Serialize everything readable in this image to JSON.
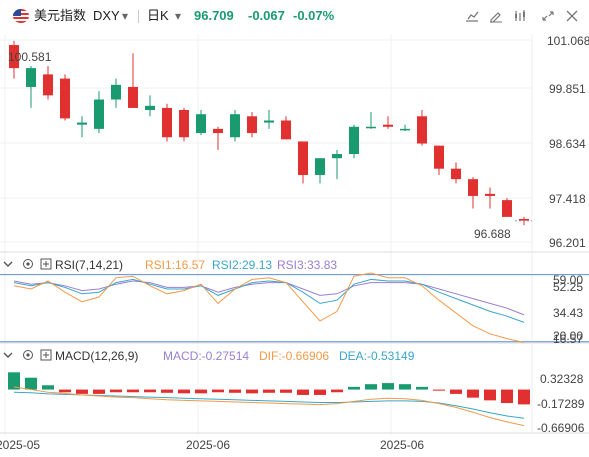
{
  "header": {
    "name": "美元指数",
    "symbol": "DXY",
    "period": "日K",
    "price": "96.709",
    "change": "-0.067",
    "change_pct": "-0.07%",
    "colors": {
      "up": "#e0302f",
      "down": "#1a9b6f",
      "accent": "#1a6fd4"
    }
  },
  "price_panel": {
    "y_ticks": [
      "101.068",
      "99.851",
      "98.634",
      "97.418",
      "96.201"
    ],
    "high_label": "100.581",
    "last_label": "96.688"
  },
  "rsi_panel": {
    "title": "RSI(7,14,21)",
    "rsi1": "RSI1:16.57",
    "rsi2": "RSI2:29.13",
    "rsi3": "RSI3:33.83",
    "y_ticks": [
      "59.00",
      "52.25",
      "34.43",
      "20.00",
      "16.57"
    ],
    "colors": {
      "rsi1": "#f29a4a",
      "rsi2": "#3aa6c9",
      "rsi3": "#9a7fd1"
    }
  },
  "macd_panel": {
    "title": "MACD(12,26,9)",
    "macd": "MACD:-0.27514",
    "dif": "DIF:-0.66906",
    "dea": "DEA:-0.53149",
    "y_ticks": [
      "0.32328",
      "-0.17289",
      "-0.66906"
    ],
    "colors": {
      "macd": "#9a7fd1",
      "dif": "#f29a4a",
      "dea": "#3aa6c9"
    }
  },
  "x_axis": {
    "labels": [
      "2025-05",
      "2025-06",
      "2025-06"
    ]
  },
  "chart_data": {
    "type": "candlestick",
    "ylim": [
      96.201,
      101.068
    ],
    "candles": [
      {
        "o": 100.9,
        "h": 101.0,
        "l": 100.1,
        "c": 100.35
      },
      {
        "o": 99.9,
        "h": 100.4,
        "l": 99.4,
        "c": 100.35
      },
      {
        "o": 100.2,
        "h": 100.4,
        "l": 99.6,
        "c": 99.7
      },
      {
        "o": 100.1,
        "h": 100.2,
        "l": 99.1,
        "c": 99.15
      },
      {
        "o": 99.0,
        "h": 99.2,
        "l": 98.7,
        "c": 99.05
      },
      {
        "o": 98.9,
        "h": 99.8,
        "l": 98.8,
        "c": 99.6
      },
      {
        "o": 99.6,
        "h": 100.1,
        "l": 99.4,
        "c": 99.95
      },
      {
        "o": 99.9,
        "h": 100.7,
        "l": 99.4,
        "c": 99.4
      },
      {
        "o": 99.35,
        "h": 99.7,
        "l": 99.2,
        "c": 99.45
      },
      {
        "o": 99.4,
        "h": 99.5,
        "l": 98.6,
        "c": 98.7
      },
      {
        "o": 99.35,
        "h": 99.4,
        "l": 98.6,
        "c": 98.7
      },
      {
        "o": 98.8,
        "h": 99.35,
        "l": 98.75,
        "c": 99.25
      },
      {
        "o": 98.9,
        "h": 98.95,
        "l": 98.4,
        "c": 98.8
      },
      {
        "o": 98.7,
        "h": 99.35,
        "l": 98.6,
        "c": 99.25
      },
      {
        "o": 99.2,
        "h": 99.3,
        "l": 98.7,
        "c": 98.8
      },
      {
        "o": 99.05,
        "h": 99.35,
        "l": 98.9,
        "c": 99.1
      },
      {
        "o": 99.1,
        "h": 99.2,
        "l": 98.65,
        "c": 98.65
      },
      {
        "o": 98.6,
        "h": 98.6,
        "l": 97.6,
        "c": 97.8
      },
      {
        "o": 97.8,
        "h": 98.2,
        "l": 97.6,
        "c": 98.2
      },
      {
        "o": 98.2,
        "h": 98.4,
        "l": 97.7,
        "c": 98.3
      },
      {
        "o": 98.3,
        "h": 99.0,
        "l": 98.2,
        "c": 98.95
      },
      {
        "o": 98.95,
        "h": 99.3,
        "l": 98.9,
        "c": 98.95
      },
      {
        "o": 99.0,
        "h": 99.2,
        "l": 98.9,
        "c": 98.95
      },
      {
        "o": 98.9,
        "h": 99.0,
        "l": 98.85,
        "c": 98.9
      },
      {
        "o": 99.2,
        "h": 99.35,
        "l": 98.5,
        "c": 98.55
      },
      {
        "o": 98.5,
        "h": 98.5,
        "l": 97.8,
        "c": 97.95
      },
      {
        "o": 97.95,
        "h": 98.1,
        "l": 97.6,
        "c": 97.7
      },
      {
        "o": 97.7,
        "h": 97.75,
        "l": 97.0,
        "c": 97.3
      },
      {
        "o": 97.35,
        "h": 97.5,
        "l": 97.0,
        "c": 97.3
      },
      {
        "o": 97.2,
        "h": 97.25,
        "l": 96.8,
        "c": 96.8
      },
      {
        "o": 96.75,
        "h": 96.8,
        "l": 96.6,
        "c": 96.709
      }
    ],
    "rsi": {
      "rsi1": [
        52,
        50,
        55,
        48,
        42,
        45,
        57,
        58,
        52,
        47,
        49,
        53,
        41,
        50,
        56,
        57,
        54,
        42,
        30,
        36,
        58,
        60,
        57,
        57,
        52,
        43,
        35,
        27,
        22,
        19,
        16.57
      ],
      "rsi2": [
        54,
        52,
        54,
        51,
        47,
        48,
        54,
        56,
        53,
        50,
        50,
        52,
        46,
        50,
        54,
        55,
        54,
        48,
        41,
        43,
        53,
        56,
        55,
        55,
        53,
        48,
        44,
        40,
        36,
        33,
        29.13
      ],
      "rsi3": [
        55,
        53,
        54,
        52,
        49,
        50,
        53,
        55,
        54,
        51,
        51,
        52,
        48,
        51,
        53,
        54,
        54,
        50,
        46,
        47,
        52,
        54,
        54,
        54,
        53,
        50,
        47,
        44,
        41,
        38,
        33.83
      ]
    },
    "macd": {
      "hist": [
        0.32,
        0.22,
        0.08,
        -0.05,
        -0.08,
        -0.08,
        -0.05,
        -0.05,
        -0.05,
        -0.06,
        -0.07,
        -0.07,
        -0.05,
        -0.06,
        -0.07,
        -0.06,
        -0.06,
        -0.1,
        -0.1,
        -0.05,
        0.05,
        0.1,
        0.12,
        0.1,
        0.05,
        -0.02,
        -0.08,
        -0.15,
        -0.2,
        -0.25,
        -0.27514
      ],
      "dif": [
        0.05,
        0.0,
        -0.05,
        -0.07,
        -0.1,
        -0.12,
        -0.14,
        -0.15,
        -0.17,
        -0.19,
        -0.2,
        -0.21,
        -0.22,
        -0.23,
        -0.24,
        -0.25,
        -0.26,
        -0.27,
        -0.28,
        -0.26,
        -0.22,
        -0.18,
        -0.16,
        -0.17,
        -0.2,
        -0.26,
        -0.33,
        -0.42,
        -0.52,
        -0.6,
        -0.66906
      ],
      "dea": [
        -0.05,
        -0.06,
        -0.08,
        -0.09,
        -0.1,
        -0.11,
        -0.12,
        -0.13,
        -0.14,
        -0.15,
        -0.16,
        -0.17,
        -0.18,
        -0.19,
        -0.2,
        -0.21,
        -0.22,
        -0.23,
        -0.24,
        -0.24,
        -0.23,
        -0.22,
        -0.21,
        -0.21,
        -0.22,
        -0.25,
        -0.3,
        -0.36,
        -0.43,
        -0.49,
        -0.53149
      ]
    }
  }
}
